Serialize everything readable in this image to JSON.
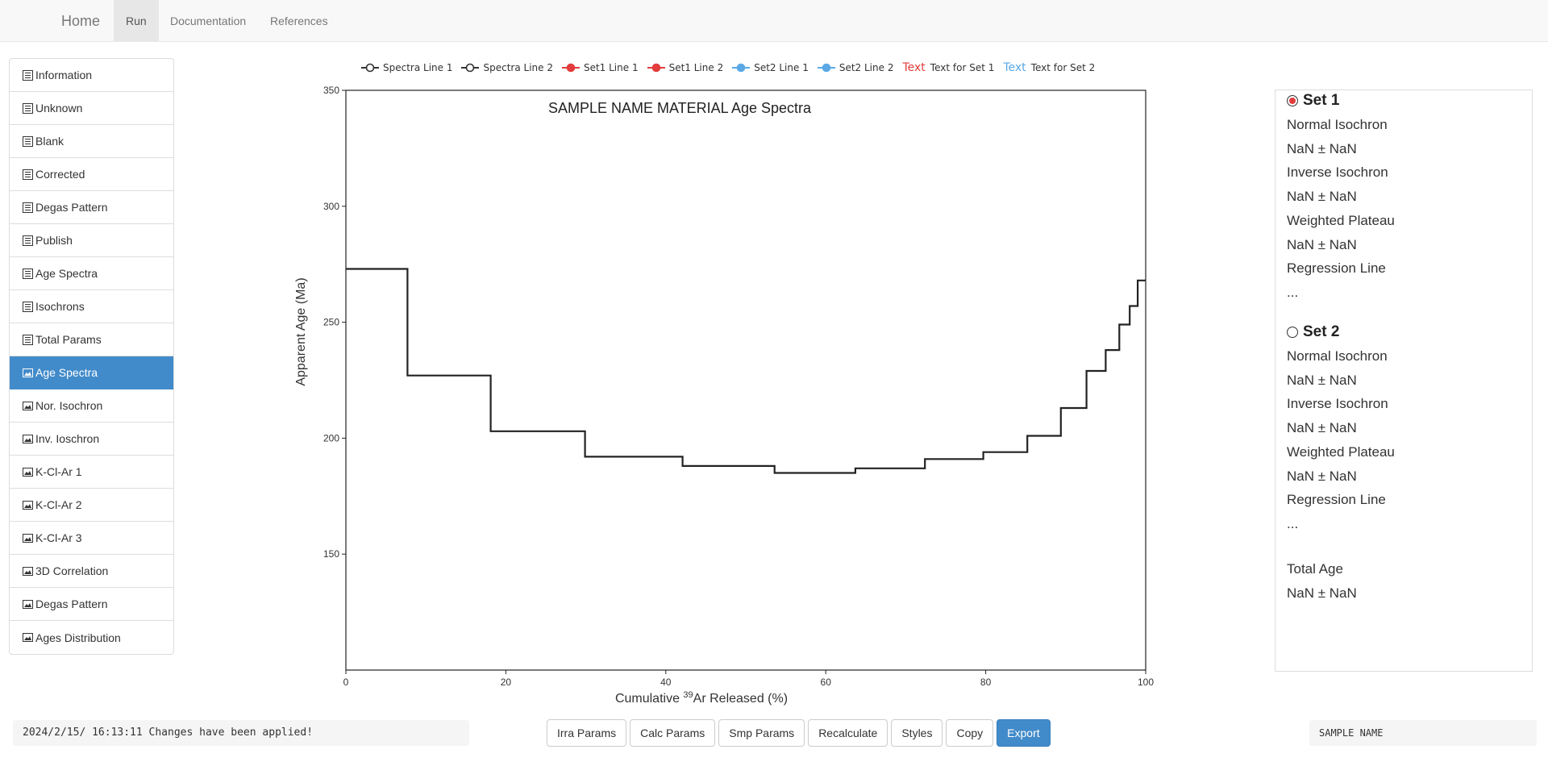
{
  "nav": {
    "brand": "Home",
    "links": [
      "Run",
      "Documentation",
      "References"
    ]
  },
  "sidebar": {
    "items": [
      {
        "label": "Information",
        "icon": "table-icon"
      },
      {
        "label": "Unknown",
        "icon": "table-icon"
      },
      {
        "label": "Blank",
        "icon": "table-icon"
      },
      {
        "label": "Corrected",
        "icon": "table-icon"
      },
      {
        "label": "Degas Pattern",
        "icon": "table-icon"
      },
      {
        "label": "Publish",
        "icon": "table-icon"
      },
      {
        "label": "Age Spectra",
        "icon": "table-icon"
      },
      {
        "label": "Isochrons",
        "icon": "table-icon"
      },
      {
        "label": "Total Params",
        "icon": "table-icon"
      },
      {
        "label": "Age Spectra",
        "icon": "image-icon",
        "active": true
      },
      {
        "label": "Nor. Isochron",
        "icon": "image-icon"
      },
      {
        "label": "Inv. Ioschron",
        "icon": "image-icon"
      },
      {
        "label": "K-Cl-Ar 1",
        "icon": "image-icon"
      },
      {
        "label": "K-Cl-Ar 2",
        "icon": "image-icon"
      },
      {
        "label": "K-Cl-Ar 3",
        "icon": "image-icon"
      },
      {
        "label": "3D Correlation",
        "icon": "image-icon"
      },
      {
        "label": "Degas Pattern",
        "icon": "image-icon"
      },
      {
        "label": "Ages Distribution",
        "icon": "image-icon"
      }
    ]
  },
  "legend": {
    "items": [
      {
        "label": "Spectra Line 1",
        "color": "#333333",
        "filled": false
      },
      {
        "label": "Spectra Line 2",
        "color": "#333333",
        "filled": false
      },
      {
        "label": "Set1 Line 1",
        "color": "#e23c3c",
        "filled": true
      },
      {
        "label": "Set1 Line 2",
        "color": "#e23c3c",
        "filled": true
      },
      {
        "label": "Set2 Line 1",
        "color": "#5aa9e6",
        "filled": true
      },
      {
        "label": "Set2 Line 2",
        "color": "#5aa9e6",
        "filled": true
      }
    ],
    "text_items": [
      {
        "mark": "Text",
        "label": "Text for Set 1",
        "color": "#e23c3c"
      },
      {
        "mark": "Text",
        "label": "Text for Set 2",
        "color": "#5aa9e6"
      }
    ]
  },
  "chart_data": {
    "type": "line",
    "title": "SAMPLE NAME MATERIAL Age Spectra",
    "xlabel_pre": "Cumulative ",
    "xlabel_sup": "39",
    "xlabel_post": "Ar Released (%)",
    "ylabel": "Apparent Age (Ma)",
    "xlim": [
      0,
      100
    ],
    "ylim": [
      100,
      350
    ],
    "xticks": [
      0,
      20,
      40,
      60,
      80,
      100
    ],
    "yticks": [
      150,
      200,
      250,
      300,
      350
    ],
    "grid": false,
    "line_color": "#222222",
    "series": [
      {
        "x": [
          0,
          7.7,
          7.7,
          18.1,
          18.1,
          29.9,
          29.9,
          42.1,
          42.1,
          53.6,
          53.6,
          63.7,
          63.7,
          72.4,
          72.4,
          79.7,
          79.7,
          85.2,
          85.2,
          89.4,
          89.4,
          92.6,
          92.6,
          95.0,
          95.0,
          96.7,
          96.7,
          98.0,
          98.0,
          99.0,
          99.0,
          100
        ],
        "y": [
          273,
          273,
          227,
          227,
          203,
          203,
          192,
          192,
          188,
          188,
          185,
          185,
          187,
          187,
          191,
          191,
          194,
          194,
          201,
          201,
          213,
          213,
          229,
          229,
          238,
          238,
          249,
          249,
          257,
          257,
          268,
          268
        ]
      }
    ]
  },
  "right_panel": {
    "set1": {
      "title": "Set 1",
      "lines": [
        "Normal Isochron",
        "NaN ± NaN",
        "Inverse Isochron",
        "NaN ± NaN",
        "Weighted Plateau",
        "NaN ± NaN",
        "Regression Line",
        "..."
      ]
    },
    "set2": {
      "title": "Set 2",
      "lines": [
        "Normal Isochron",
        "NaN ± NaN",
        "Inverse Isochron",
        "NaN ± NaN",
        "Weighted Plateau",
        "NaN ± NaN",
        "Regression Line",
        "..."
      ]
    },
    "total": {
      "title": "Total Age",
      "value": "NaN ± NaN"
    }
  },
  "status": {
    "message": "2024/2/15/ 16:13:11 Changes have been applied!",
    "sample_name": "SAMPLE NAME"
  },
  "buttons": [
    "Irra Params",
    "Calc Params",
    "Smp Params",
    "Recalculate",
    "Styles",
    "Copy",
    "Export"
  ]
}
